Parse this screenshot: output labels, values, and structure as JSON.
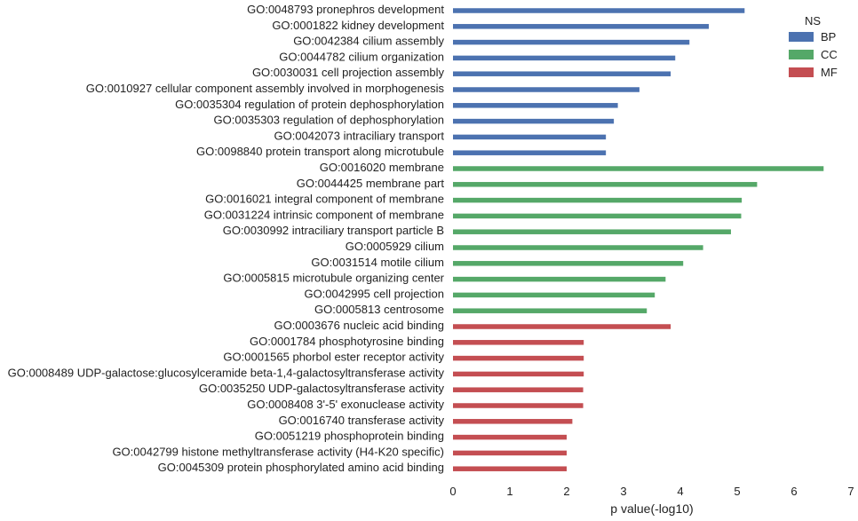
{
  "chart_data": {
    "type": "bar",
    "orientation": "horizontal",
    "xlabel": "p value(-log10)",
    "xlim": [
      0,
      7
    ],
    "xticks": [
      0,
      1,
      2,
      3,
      4,
      5,
      6,
      7
    ],
    "grid": false,
    "legend": {
      "title": "NS",
      "placement": "top-right",
      "entries": [
        {
          "name": "BP",
          "color": "#4c72b0"
        },
        {
          "name": "CC",
          "color": "#55a868"
        },
        {
          "name": "MF",
          "color": "#c44e52"
        }
      ]
    },
    "bars": [
      {
        "label": "GO:0048793 pronephros development",
        "value": 5.13,
        "group": "BP"
      },
      {
        "label": "GO:0001822 kidney development",
        "value": 4.5,
        "group": "BP"
      },
      {
        "label": "GO:0042384 cilium assembly",
        "value": 4.16,
        "group": "BP"
      },
      {
        "label": "GO:0044782 cilium organization",
        "value": 3.91,
        "group": "BP"
      },
      {
        "label": "GO:0030031 cell projection assembly",
        "value": 3.83,
        "group": "BP"
      },
      {
        "label": "GO:0010927 cellular component assembly involved in morphogenesis",
        "value": 3.28,
        "group": "BP"
      },
      {
        "label": "GO:0035304 regulation of protein dephosphorylation",
        "value": 2.9,
        "group": "BP"
      },
      {
        "label": "GO:0035303 regulation of dephosphorylation",
        "value": 2.83,
        "group": "BP"
      },
      {
        "label": "GO:0042073 intraciliary transport",
        "value": 2.69,
        "group": "BP"
      },
      {
        "label": "GO:0098840 protein transport along microtubule",
        "value": 2.69,
        "group": "BP"
      },
      {
        "label": "GO:0016020 membrane",
        "value": 6.52,
        "group": "CC"
      },
      {
        "label": "GO:0044425 membrane part",
        "value": 5.35,
        "group": "CC"
      },
      {
        "label": "GO:0016021 integral component of membrane",
        "value": 5.08,
        "group": "CC"
      },
      {
        "label": "GO:0031224 intrinsic component of membrane",
        "value": 5.07,
        "group": "CC"
      },
      {
        "label": "GO:0030992 intraciliary transport particle B",
        "value": 4.89,
        "group": "CC"
      },
      {
        "label": "GO:0005929 cilium",
        "value": 4.4,
        "group": "CC"
      },
      {
        "label": "GO:0031514 motile cilium",
        "value": 4.05,
        "group": "CC"
      },
      {
        "label": "GO:0005815 microtubule organizing center",
        "value": 3.74,
        "group": "CC"
      },
      {
        "label": "GO:0042995 cell projection",
        "value": 3.55,
        "group": "CC"
      },
      {
        "label": "GO:0005813 centrosome",
        "value": 3.41,
        "group": "CC"
      },
      {
        "label": "GO:0003676 nucleic acid binding",
        "value": 3.83,
        "group": "MF"
      },
      {
        "label": "GO:0001784 phosphotyrosine binding",
        "value": 2.3,
        "group": "MF"
      },
      {
        "label": "GO:0001565 phorbol ester receptor activity",
        "value": 2.3,
        "group": "MF"
      },
      {
        "label": "GO:0008489 UDP-galactose:glucosylceramide beta-1,4-galactosyltransferase activity",
        "value": 2.3,
        "group": "MF"
      },
      {
        "label": "GO:0035250 UDP-galactosyltransferase activity",
        "value": 2.29,
        "group": "MF"
      },
      {
        "label": "GO:0008408 3'-5' exonuclease activity",
        "value": 2.29,
        "group": "MF"
      },
      {
        "label": "GO:0016740 transferase activity",
        "value": 2.1,
        "group": "MF"
      },
      {
        "label": "GO:0051219 phosphoprotein binding",
        "value": 2.0,
        "group": "MF"
      },
      {
        "label": "GO:0042799 histone methyltransferase activity (H4-K20 specific)",
        "value": 2.0,
        "group": "MF"
      },
      {
        "label": "GO:0045309 protein phosphorylated amino acid binding",
        "value": 2.0,
        "group": "MF"
      }
    ]
  }
}
